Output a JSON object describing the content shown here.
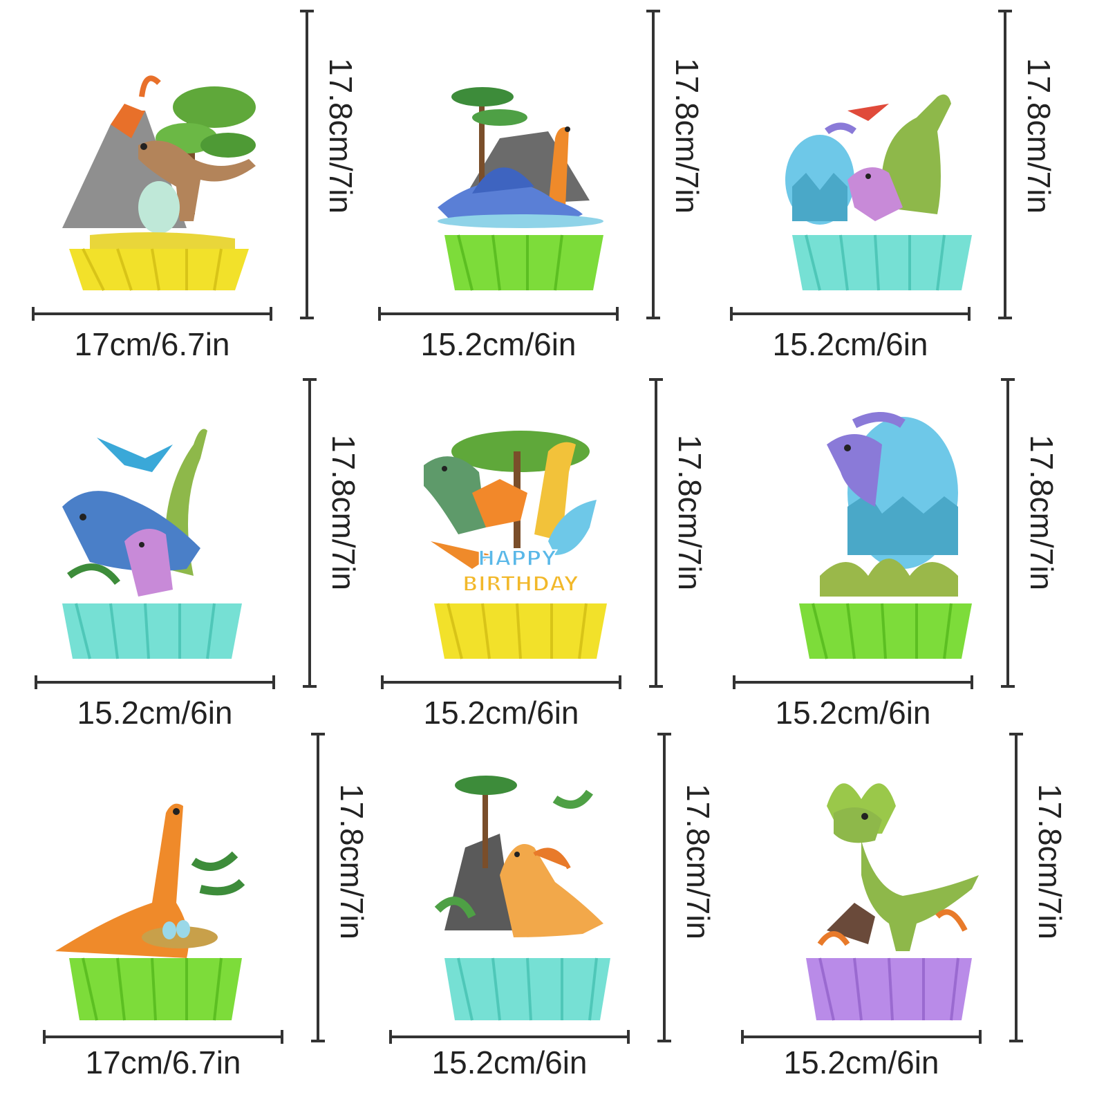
{
  "items": [
    {
      "width_label": "17cm/6.7in",
      "height_label": "17.8cm/7in",
      "base_color": "#f2e12a",
      "theme": "volcano-trex"
    },
    {
      "width_label": "15.2cm/6in",
      "height_label": "17.8cm/7in",
      "base_color": "#7ddc3a",
      "theme": "palm-stegosaur"
    },
    {
      "width_label": "15.2cm/6in",
      "height_label": "17.8cm/7in",
      "base_color": "#76e0d4",
      "theme": "egg-triceratops"
    },
    {
      "width_label": "15.2cm/6in",
      "height_label": "17.8cm/7in",
      "base_color": "#76e0d4",
      "theme": "pterodactyl-triceratops"
    },
    {
      "width_label": "15.2cm/6in",
      "height_label": "17.8cm/7in",
      "base_color": "#f2e12a",
      "theme": "happy-birthday",
      "banner": [
        "HAPPY",
        "BIRTHDAY"
      ]
    },
    {
      "width_label": "15.2cm/6in",
      "height_label": "17.8cm/7in",
      "base_color": "#7ddc3a",
      "theme": "hatching-egg"
    },
    {
      "width_label": "17cm/6.7in",
      "height_label": "17.8cm/7in",
      "base_color": "#7ddc3a",
      "theme": "brachiosaurus-nest"
    },
    {
      "width_label": "15.2cm/6in",
      "height_label": "17.8cm/7in",
      "base_color": "#76e0d4",
      "theme": "jungle-spinosaurus"
    },
    {
      "width_label": "15.2cm/6in",
      "height_label": "17.8cm/7in",
      "base_color": "#b98be8",
      "theme": "dilophosaurus"
    }
  ]
}
